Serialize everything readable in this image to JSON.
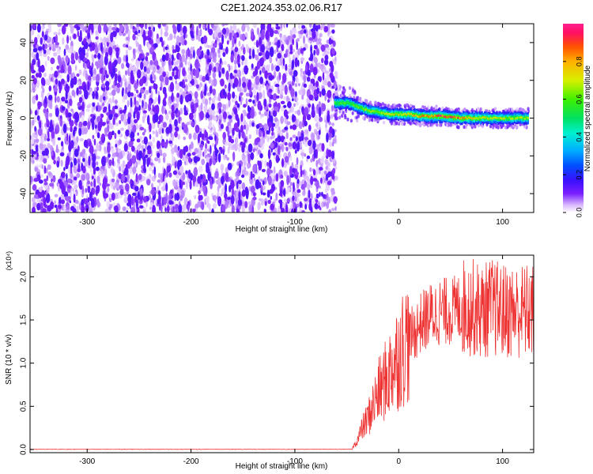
{
  "title": "C2E1.2024.353.02.06.R17",
  "chart_data": [
    {
      "type": "heatmap",
      "xlabel": "Height of straight line (km)",
      "ylabel": "Frequency (Hz)",
      "xlim": [
        -355,
        130
      ],
      "ylim": [
        -50,
        50
      ],
      "x_ticks": [
        -300,
        -200,
        -100,
        0,
        100
      ],
      "y_ticks": [
        -40,
        -20,
        0,
        20,
        40
      ],
      "grid": false,
      "colorbar": {
        "label": "Normalized spectral amplitude",
        "range": [
          0,
          1
        ],
        "ticks": [
          "0.0",
          "0.2",
          "0.4",
          "0.6",
          "0.8"
        ]
      },
      "regions": [
        {
          "x_range": [
            -355,
            -60
          ],
          "description_level": "noise",
          "amplitude_range": [
            0.0,
            0.2
          ]
        },
        {
          "x_range": [
            -60,
            130
          ],
          "description_level": "signal",
          "frequency_center_hz": 0,
          "amplitude_range": [
            0.5,
            1.0
          ]
        }
      ],
      "ridge": {
        "x": [
          -62,
          -50,
          -40,
          -30,
          -20,
          -10,
          0,
          10,
          20,
          40,
          60,
          80,
          100,
          125
        ],
        "freq": [
          8,
          8,
          6,
          4,
          3,
          2,
          2,
          2,
          1,
          1,
          0,
          0,
          0,
          0
        ],
        "amplitude": [
          0.6,
          0.6,
          0.62,
          0.65,
          0.7,
          0.72,
          0.75,
          0.8,
          0.85,
          0.95,
          0.9,
          0.75,
          0.7,
          0.68
        ]
      }
    },
    {
      "type": "line",
      "xlabel": "Height of straight line (km)",
      "ylabel": "SNR (10 * v/v)",
      "y_scale_label": "(x10⁴)",
      "xlim": [
        -355,
        130
      ],
      "ylim": [
        0,
        2.25
      ],
      "x_ticks": [
        -300,
        -200,
        -100,
        0,
        100
      ],
      "y_ticks": [
        "0.0",
        "0.5",
        "1.0",
        "1.5",
        "2.0"
      ],
      "grid": false,
      "color": "#ee3333",
      "series": [
        {
          "x": [
            -355,
            -300,
            -200,
            -100,
            -60,
            -45,
            -40,
            -35,
            -30,
            -25,
            -20,
            -15,
            -10,
            -5,
            0,
            5,
            10,
            15,
            20,
            30,
            40,
            50,
            60,
            70,
            80,
            90,
            100,
            110,
            120,
            130
          ],
          "values": [
            0.0,
            0.0,
            0.0,
            0.0,
            0.0,
            0.01,
            0.1,
            0.25,
            0.35,
            0.5,
            0.65,
            0.75,
            0.85,
            1.0,
            1.1,
            1.2,
            1.3,
            1.35,
            1.45,
            1.55,
            1.6,
            1.6,
            1.65,
            1.65,
            1.6,
            1.65,
            1.6,
            1.6,
            1.6,
            1.6
          ]
        }
      ]
    }
  ]
}
